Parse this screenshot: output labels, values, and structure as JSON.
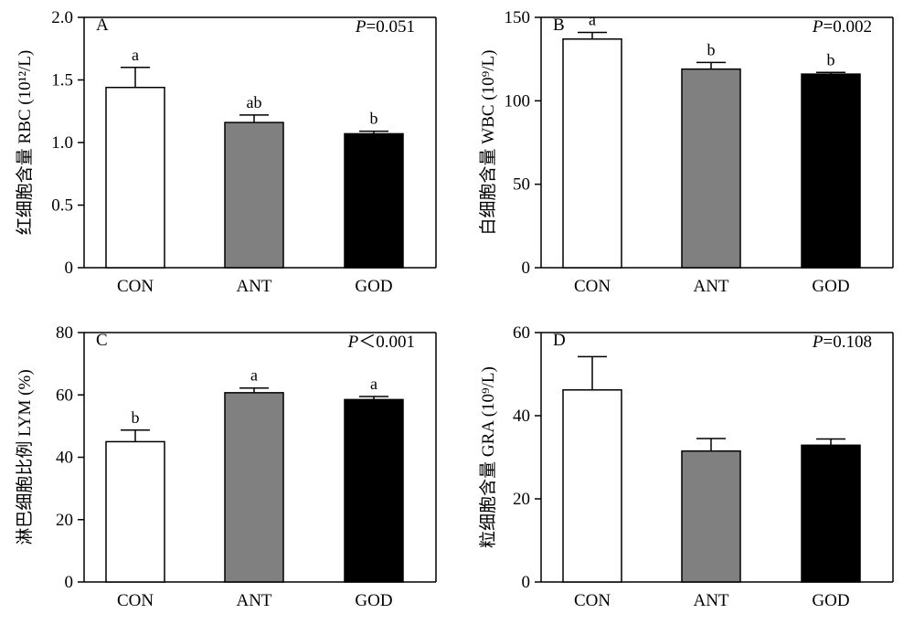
{
  "chart_data": [
    {
      "type": "bar",
      "panel_label": "A",
      "ylabel": "红细胞含量 RBC (10¹²/L)",
      "p_value_prefix": "P",
      "p_value_text": "=0.051",
      "categories": [
        "CON",
        "ANT",
        "GOD"
      ],
      "values": [
        1.44,
        1.16,
        1.07
      ],
      "errors": [
        0.16,
        0.06,
        0.02
      ],
      "significance": [
        "a",
        "ab",
        "b"
      ],
      "bar_colors": [
        "#ffffff",
        "#808080",
        "#000000"
      ],
      "ylim": [
        0,
        2.0
      ],
      "yticks": [
        0,
        0.5,
        1.0,
        1.5,
        2.0
      ],
      "ytick_labels": [
        "0",
        "0.5",
        "1.0",
        "1.5",
        "2.0"
      ]
    },
    {
      "type": "bar",
      "panel_label": "B",
      "ylabel": "白细胞含量 WBC (10⁹/L)",
      "p_value_prefix": "P",
      "p_value_text": "=0.002",
      "categories": [
        "CON",
        "ANT",
        "GOD"
      ],
      "values": [
        137,
        119,
        116
      ],
      "errors": [
        4,
        4,
        1
      ],
      "significance": [
        "a",
        "b",
        "b"
      ],
      "bar_colors": [
        "#ffffff",
        "#808080",
        "#000000"
      ],
      "ylim": [
        0,
        150
      ],
      "yticks": [
        0,
        50,
        100,
        150
      ],
      "ytick_labels": [
        "0",
        "50",
        "100",
        "150"
      ]
    },
    {
      "type": "bar",
      "panel_label": "C",
      "ylabel": "淋巴细胞比例 LYM (%)",
      "p_value_prefix": "P",
      "p_value_text": "＜0.001",
      "categories": [
        "CON",
        "ANT",
        "GOD"
      ],
      "values": [
        45,
        60.7,
        58.5
      ],
      "errors": [
        3.7,
        1.5,
        1.0
      ],
      "significance": [
        "b",
        "a",
        "a"
      ],
      "bar_colors": [
        "#ffffff",
        "#808080",
        "#000000"
      ],
      "ylim": [
        0,
        80
      ],
      "yticks": [
        0,
        20,
        40,
        60,
        80
      ],
      "ytick_labels": [
        "0",
        "20",
        "40",
        "60",
        "80"
      ]
    },
    {
      "type": "bar",
      "panel_label": "D",
      "ylabel": "粒细胞含量 GRA (10⁹/L)",
      "p_value_prefix": "P",
      "p_value_text": "=0.108",
      "categories": [
        "CON",
        "ANT",
        "GOD"
      ],
      "values": [
        46.2,
        31.5,
        32.9
      ],
      "errors": [
        8.0,
        3.0,
        1.5
      ],
      "significance": [
        "",
        "",
        ""
      ],
      "bar_colors": [
        "#ffffff",
        "#808080",
        "#000000"
      ],
      "ylim": [
        0,
        60
      ],
      "yticks": [
        0,
        20,
        40,
        60
      ],
      "ytick_labels": [
        "0",
        "20",
        "40",
        "60"
      ]
    }
  ]
}
